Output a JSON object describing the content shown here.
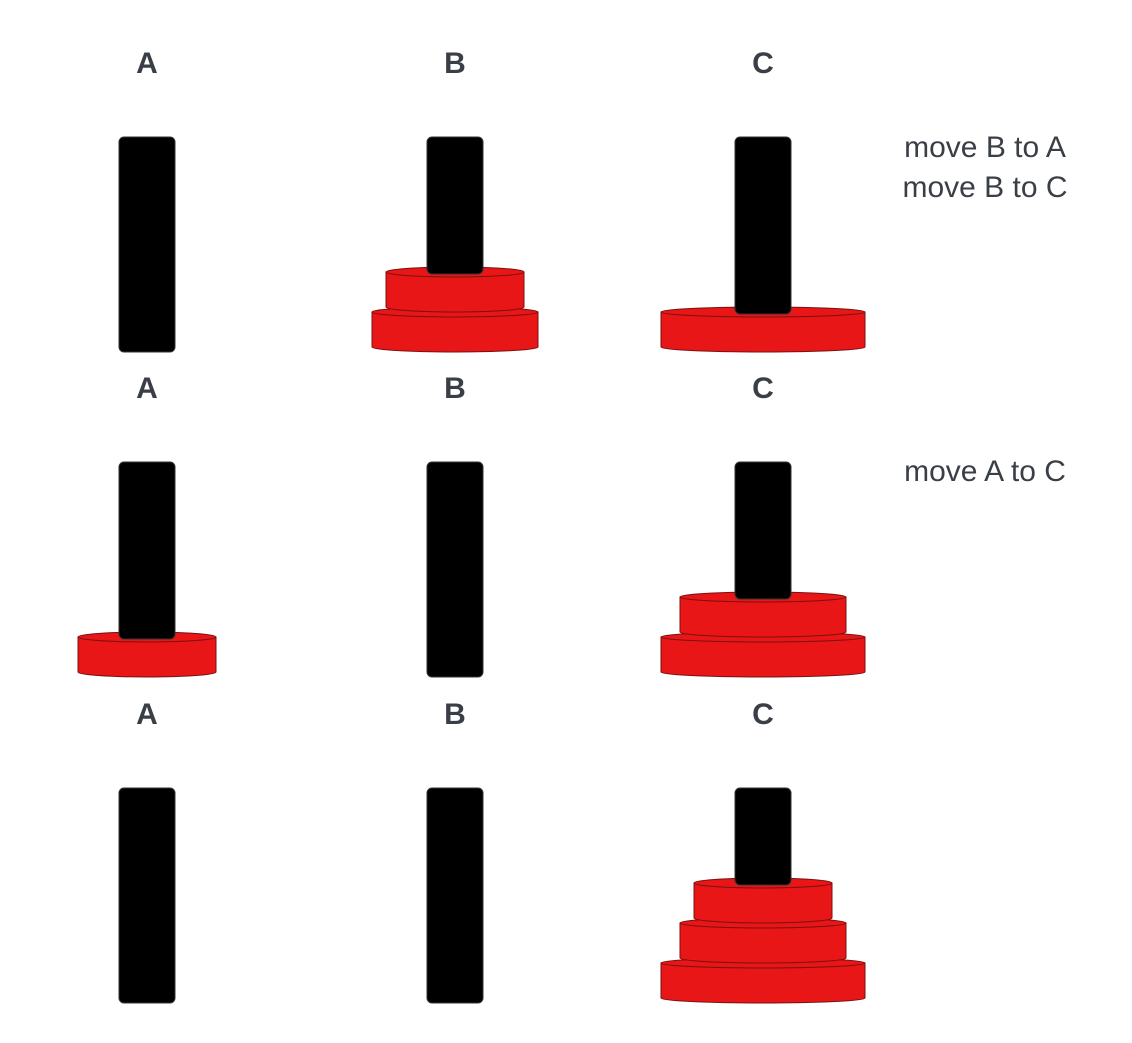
{
  "colors": {
    "peg": "#000000",
    "disk": "#e81616",
    "disk_outline": "#7a1010",
    "text": "#3a3f47"
  },
  "steps": [
    {
      "labels": [
        "A",
        "B",
        "C"
      ],
      "moves": [
        "move B to A",
        "move B to C"
      ],
      "pegs": [
        {
          "label": "A",
          "disks": []
        },
        {
          "label": "B",
          "disks": [
            3,
            2
          ]
        },
        {
          "label": "C",
          "disks": [
            4
          ]
        }
      ]
    },
    {
      "labels": [
        "A",
        "B",
        "C"
      ],
      "moves": [
        "move A to C"
      ],
      "pegs": [
        {
          "label": "A",
          "disks": [
            2
          ]
        },
        {
          "label": "B",
          "disks": []
        },
        {
          "label": "C",
          "disks": [
            4,
            3
          ]
        }
      ]
    },
    {
      "labels": [
        "A",
        "B",
        "C"
      ],
      "moves": [],
      "pegs": [
        {
          "label": "A",
          "disks": []
        },
        {
          "label": "B",
          "disks": []
        },
        {
          "label": "C",
          "disks": [
            4,
            3,
            2
          ]
        }
      ]
    }
  ]
}
